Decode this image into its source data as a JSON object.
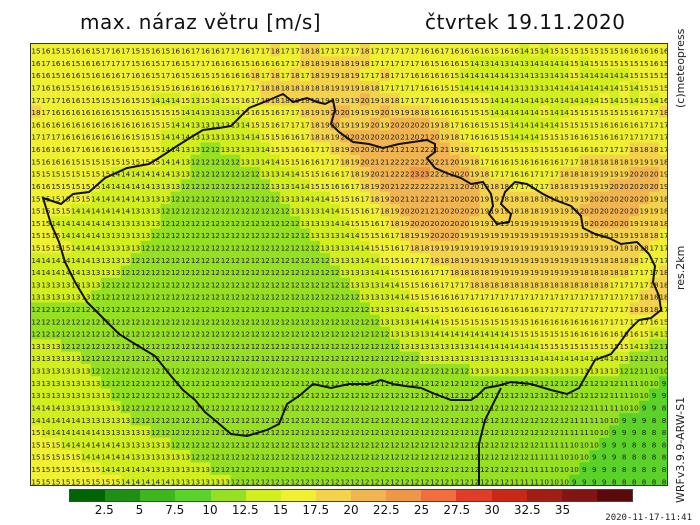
{
  "header": {
    "title": "max. náraz větru [m/s]",
    "date": "čtvrtek 19.11.2020"
  },
  "side_labels": {
    "copyright": "(c)meteopress",
    "resolution": "res.2km",
    "model": "WRFv3.9.9-ARW-S1"
  },
  "timestamp": "2020-11-17-11:41",
  "legend": {
    "colors": [
      "#006400",
      "#1e8f12",
      "#3cb81e",
      "#5ad22a",
      "#96e024",
      "#d2ee1e",
      "#f0f032",
      "#f5d24b",
      "#f0b450",
      "#f0964b",
      "#f06e3c",
      "#e03c28",
      "#c82814",
      "#a01e14",
      "#821414",
      "#5a0a0a"
    ],
    "labels": [
      "2.5",
      "5",
      "7.5",
      "10",
      "12.5",
      "15",
      "17.5",
      "20",
      "22.5",
      "25",
      "27.5",
      "30",
      "32.5",
      "35"
    ]
  },
  "chart_data": {
    "type": "heatmap",
    "title": "max. náraz větru [m/s]",
    "unit": "m/s",
    "date": "čtvrtek 19.11.2020",
    "rows": [
      "15 16 15 15 16 16 15 17 16 17 15 15 16 15 16 16 17 16 16 17 17 16 17 17 18 17 17 18 18 17 17 17 17 18 17 17 17 17 17 16 16 17 16 16 16 16 15 16 16 14 15 14 15 15 15 15 15 15 15 16 16 16 16 16",
      "16 17 16 16 15 16 16 17 17 17 15 16 15 17 16 15 17 17 16 16 16 15 16 16 16 17 17 18 18 19 18 18 19 18 17 17 17 17 17 16 15 16 16 15 14 13 14 13 14 13 14 14 14 14 15 14 15 15 15 15 15 15 16 15",
      "16 16 15 16 16 15 16 16 16 17 16 16 15 17 16 15 16 15 15 16 16 16 18 17 18 17 18 17 18 19 19 18 19 17 17 18 17 17 16 16 16 16 15 14 14 14 14 14 13 14 13 13 14 14 15 14 14 14 14 14 15 15 15 15",
      "17 16 16 15 15 16 16 16 15 15 15 16 15 15 16 16 16 16 16 16 17 17 17 18 18 18 18 18 18 18 19 19 19 18 18 17 17 17 17 16 16 15 15 14 14 14 14 14 13 13 13 13 14 14 14 14 14 14 14 15 14 15 15 15",
      "17 17 17 16 16 15 15 15 15 16 15 15 14 14 14 15 13 15 14 15 15 16 17 18 18 18 19 18 19 19 19 19 19 20 19 18 18 17 17 17 16 16 16 15 15 15 14 14 14 14 14 14 14 14 14 14 14 15 14 15 14 15 14 16",
      "18 17 16 16 16 16 16 16 15 15 16 15 15 15 15 14 14 13 13 13 14 15 16 15 16 17 17 18 19 19 20 20 19 19 19 20 19 19 18 18 16 16 16 15 15 15 14 14 14 14 14 15 14 14 15 15 15 15 15 15 16 17 17 18",
      "16 16 16 16 16 16 16 16 16 16 16 16 15 15 14 14 13 13 13 13 13 14 15 15 16 17 17 17 18 19 20 19 19 19 20 19 20 20 20 20 19 18 17 16 16 15 15 15 14 14 14 14 14 15 15 15 15 16 16 16 16 17 17 17",
      "17 17 17 16 16 16 16 16 16 16 15 15 15 14 14 14 13 13 13 13 13 14 14 15 15 16 16 17 18 18 19 20 20 20 20 20 20 21 20 21 20 19 18 17 16 16 15 15 14 14 14 15 15 15 16 16 15 16 16 17 17 17 17 17",
      "16 16 16 16 17 16 16 16 16 16 15 15 15 14 14 13 13 12 12 13 13 13 13 14 15 15 16 16 17 17 18 19 20 20 20 21 21 21 21 22 21 21 19 18 17 16 15 15 15 15 15 15 15 16 16 16 16 17 17 17 18 18 18 17",
      "15 16 16 16 15 15 15 15 15 15 15 15 15 14 14 13 12 12 12 12 12 13 13 14 14 15 15 16 16 17 17 18 19 20 21 21 22 22 22 22 22 21 20 19 18 17 16 16 15 16 16 16 16 17 17 18 18 18 18 18 19 19 19 18",
      "15 15 15 15 15 15 15 15 14 14 14 14 14 14 13 13 12 12 12 12 12 12 12 13 13 14 14 15 15 16 16 17 18 19 20 21 22 22 23 23 22 21 20 20 19 18 17 17 16 16 17 17 17 18 18 18 19 19 19 19 20 20 20 19",
      "16 16 15 15 15 15 15 14 14 14 14 14 13 13 13 12 12 12 12 12 12 12 12 12 13 13 14 14 15 15 16 16 17 18 19 20 21 22 22 22 22 21 21 20 20 19 18 18 17 17 17 17 18 18 19 19 19 19 20 20 20 20 20 19",
      "15 15 15 15 15 15 14 14 14 14 14 13 13 13 12 12 12 12 12 12 12 12 12 12 12 13 13 14 14 14 15 15 16 17 18 19 20 21 21 22 21 21 20 20 20 19 19 18 18 18 18 18 18 19 19 19 20 20 20 20 20 20 19 18",
      "15 15 15 15 14 14 14 14 14 14 13 13 13 12 12 12 12 12 12 12 12 12 12 12 12 12 13 13 13 14 14 15 15 16 17 18 19 20 20 21 21 20 20 20 20 19 19 19 18 18 18 19 19 19 19 20 20 20 20 20 20 19 19 18",
      "15 15 14 14 14 14 14 14 13 13 13 13 13 12 12 12 12 12 12 12 12 12 12 12 12 12 12 13 13 13 14 14 15 15 16 17 18 19 20 20 20 20 20 20 19 19 19 19 19 19 19 19 19 19 19 19 20 20 20 20 19 19 18 18",
      "15 15 15 14 14 14 14 13 13 13 13 13 12 12 12 12 12 12 12 12 12 12 12 12 12 12 12 12 13 13 13 14 14 15 15 16 17 18 19 19 20 20 20 19 19 19 19 19 19 19 19 19 19 19 19 19 19 19 19 19 19 18 18 17",
      "15 15 15 15 14 14 14 13 13 13 13 12 12 12 12 12 12 12 12 12 12 12 12 12 12 12 12 12 12 13 13 13 14 14 15 15 16 17 18 18 19 19 19 19 19 19 19 19 19 19 19 19 19 19 19 19 19 19 19 18 18 18 17 17",
      "14 14 14 14 14 14 13 13 13 13 12 12 12 12 12 12 12 12 12 12 12 12 12 12 12 12 12 12 12 12 13 13 13 14 14 15 15 16 17 17 18 18 18 19 19 19 19 19 19 19 19 19 19 19 19 19 19 18 18 18 18 17 17 17",
      "14 14 14 14 14 13 13 13 13 12 12 12 12 12 12 12 12 12 12 12 12 12 12 12 12 12 12 12 12 12 12 13 13 13 14 14 15 15 16 16 17 17 18 18 18 18 19 19 19 19 19 19 19 19 19 18 18 18 18 18 17 17 17 18",
      "13 13 13 13 13 13 13 12 12 12 12 12 12 12 12 12 12 12 12 12 12 12 12 12 12 12 12 12 12 12 12 12 13 13 13 14 14 15 15 16 16 17 17 17 18 18 18 18 18 18 18 18 18 18 18 18 18 18 17 17 17 17 18 18",
      "13 13 13 13 13 13 12 12 12 12 12 12 12 12 12 12 12 12 12 12 12 12 12 12 12 12 12 12 12 12 12 12 12 13 13 13 14 14 15 15 16 16 16 17 17 17 17 17 17 17 17 17 17 17 17 17 17 17 17 17 17 18 18 18",
      "12 12 12 12 12 12 12 12 12 12 12 12 12 12 12 12 12 12 12 12 12 12 12 12 12 12 12 12 12 12 12 12 12 12 13 13 13 14 14 15 15 15 16 16 16 16 16 16 16 16 16 17 17 17 17 17 17 17 17 17 18 18 18 17",
      "12 12 12 12 12 12 12 12 12 12 12 12 12 12 12 12 12 12 12 12 12 12 12 12 12 12 12 12 12 12 12 12 12 12 12 13 13 13 14 14 14 15 15 15 15 15 15 15 15 15 16 16 16 16 16 16 16 17 17 17 17 17 16 15",
      "12 12 12 12 12 12 12 12 12 12 12 12 12 12 12 12 12 12 12 12 12 12 12 12 12 12 12 12 12 12 12 12 12 12 12 12 13 13 13 13 14 14 14 14 14 14 14 14 15 15 15 15 15 15 16 16 16 16 16 16 16 15 14 13",
      "13 13 13 12 12 12 12 12 12 12 12 12 12 12 12 12 12 12 12 12 12 12 12 12 12 12 12 12 12 12 12 12 12 12 12 12 12 13 13 13 13 13 13 13 14 14 14 14 14 14 14 15 15 15 15 15 15 15 15 15 14 13 12 11",
      "13 13 13 13 13 12 12 12 12 12 12 12 12 12 12 12 12 12 12 12 12 12 12 12 12 12 12 12 12 12 12 12 12 12 12 12 12 12 12 13 13 13 13 13 13 13 13 13 13 13 14 14 14 14 14 14 14 14 14 13 12 12 11 10",
      "13 13 13 13 13 13 12 12 12 12 12 12 12 12 12 12 12 12 12 12 12 12 12 12 12 12 12 12 12 12 12 12 12 12 12 12 12 12 12 12 12 12 12 12 13 13 13 13 13 13 13 13 13 13 13 13 13 13 13 12 12 11 10 10",
      "13 13 13 13 13 13 13 12 12 12 12 12 12 12 12 12 12 12 12 12 12 12 12 12 12 12 12 12 12 12 12 12 12 12 12 12 12 12 12 12 12 12 12 12 12 12 12 12 12 12 12 12 12 12 12 12 12 12 12 11 11 10 10 9",
      "13 13 13 13 13 13 13 13 12 12 12 12 12 12 12 12 12 12 12 12 12 12 12 12 12 12 12 12 12 12 12 12 12 12 12 12 12 12 12 12 12 12 12 12 12 12 12 12 12 12 12 12 12 12 12 12 12 12 11 11 10 10 9 9",
      "14 14 14 13 13 13 13 13 13 12 12 12 12 12 12 12 12 12 12 12 12 12 12 12 12 12 12 12 12 12 12 12 12 12 12 12 12 12 12 12 12 12 12 12 12 12 12 12 12 12 12 12 12 12 12 12 11 11 11 10 10 9 9 8",
      "14 14 14 14 14 13 13 13 13 13 12 12 12 12 12 12 12 12 12 12 12 12 12 12 12 12 12 12 12 12 12 12 12 12 12 12 12 12 12 12 12 12 12 12 12 12 12 12 12 12 12 12 12 12 11 11 11 10 10 9 9 9 8 8",
      "15 14 14 14 14 14 14 13 13 13 13 13 12 12 12 12 12 12 12 12 12 12 12 12 12 12 12 12 12 12 12 12 12 12 12 12 12 12 12 12 12 12 12 12 12 12 12 12 12 12 12 12 12 11 11 11 10 10 9 9 9 8 8 8",
      "15 15 15 14 14 14 14 14 14 13 13 13 13 13 12 12 12 12 12 12 12 12 12 12 12 12 12 12 12 12 12 12 12 12 12 12 12 12 12 12 12 12 12 12 12 12 12 12 12 12 12 11 11 11 10 10 10 9 9 9 8 8 8 8",
      "15 15 15 15 15 14 14 14 14 14 13 13 13 13 13 13 12 12 12 12 12 12 12 12 12 12 12 12 12 12 12 12 12 12 12 12 12 12 12 12 12 12 12 12 12 12 12 12 12 12 11 11 11 10 10 10 9 9 9 8 8 8 8 8",
      "15 15 15 15 15 15 15 14 14 14 14 14 13 13 13 13 13 13 12 12 12 12 12 12 12 12 12 12 12 12 12 12 12 12 12 12 12 12 12 12 12 12 12 12 12 12 12 12 12 11 11 11 10 10 10 9 9 9 8 8 8 8 8 8",
      "15 15 15 15 15 15 15 15 15 14 14 14 14 14 13 13 13 13 13 13 12 12 12 12 12 12 12 12 12 12 12 12 12 12 12 12 12 12 12 12 12 12 12 12 12 12 12 12 11 11 11 10 10 10 9 9 9 9 8 8 8 8 8 8"
    ]
  }
}
